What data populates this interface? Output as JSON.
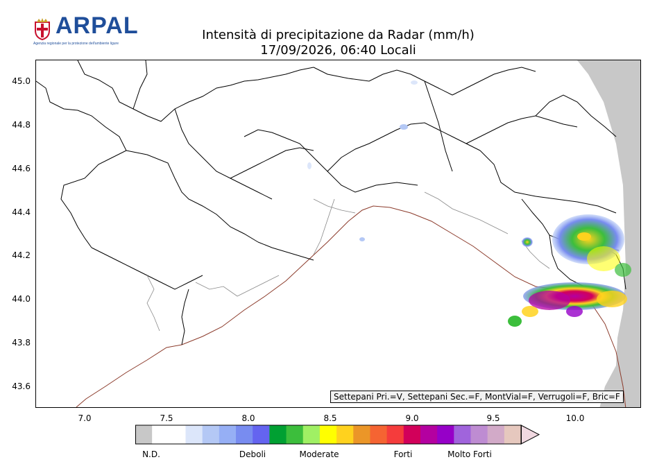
{
  "brand": {
    "name": "ARPAL",
    "tagline": "Agenzia regionale per la protezione dell'ambiente ligure"
  },
  "title": {
    "line1": "Intensità di precipitazione da Radar (mm/h)",
    "line2": "17/09/2026, 06:40 Locali"
  },
  "map": {
    "lon_range": [
      6.7,
      10.4
    ],
    "lat_range": [
      43.5,
      45.1
    ],
    "x_ticks": [
      "7.0",
      "7.5",
      "8.0",
      "8.5",
      "9.0",
      "9.5",
      "10.0"
    ],
    "y_ticks": [
      "45.0",
      "44.8",
      "44.6",
      "44.4",
      "44.2",
      "44.0",
      "43.8",
      "43.6"
    ],
    "no_data_color": "#c8c8c8",
    "status_flags": "Settepani Pri.=V, Settepani Sec.=F, MontVial=F, Verrugoli=F, Bric=F"
  },
  "colorbar": {
    "colors": [
      "#c8c8c8",
      "#ffffff",
      "#ffffff",
      "#dce6fa",
      "#b4c8f5",
      "#96aff5",
      "#788cf0",
      "#6464f0",
      "#00a032",
      "#3cbe3c",
      "#a0f064",
      "#ffff00",
      "#ffd21e",
      "#eb9628",
      "#f56432",
      "#f53c3c",
      "#d2005a",
      "#b400a0",
      "#9600c8",
      "#a064dc",
      "#be8cd2",
      "#d2aac8",
      "#e6c8be",
      "#f0d8e0"
    ],
    "labels": [
      "N.D.",
      "Deboli",
      "Moderate",
      "Forti",
      "Molto Forti"
    ]
  }
}
